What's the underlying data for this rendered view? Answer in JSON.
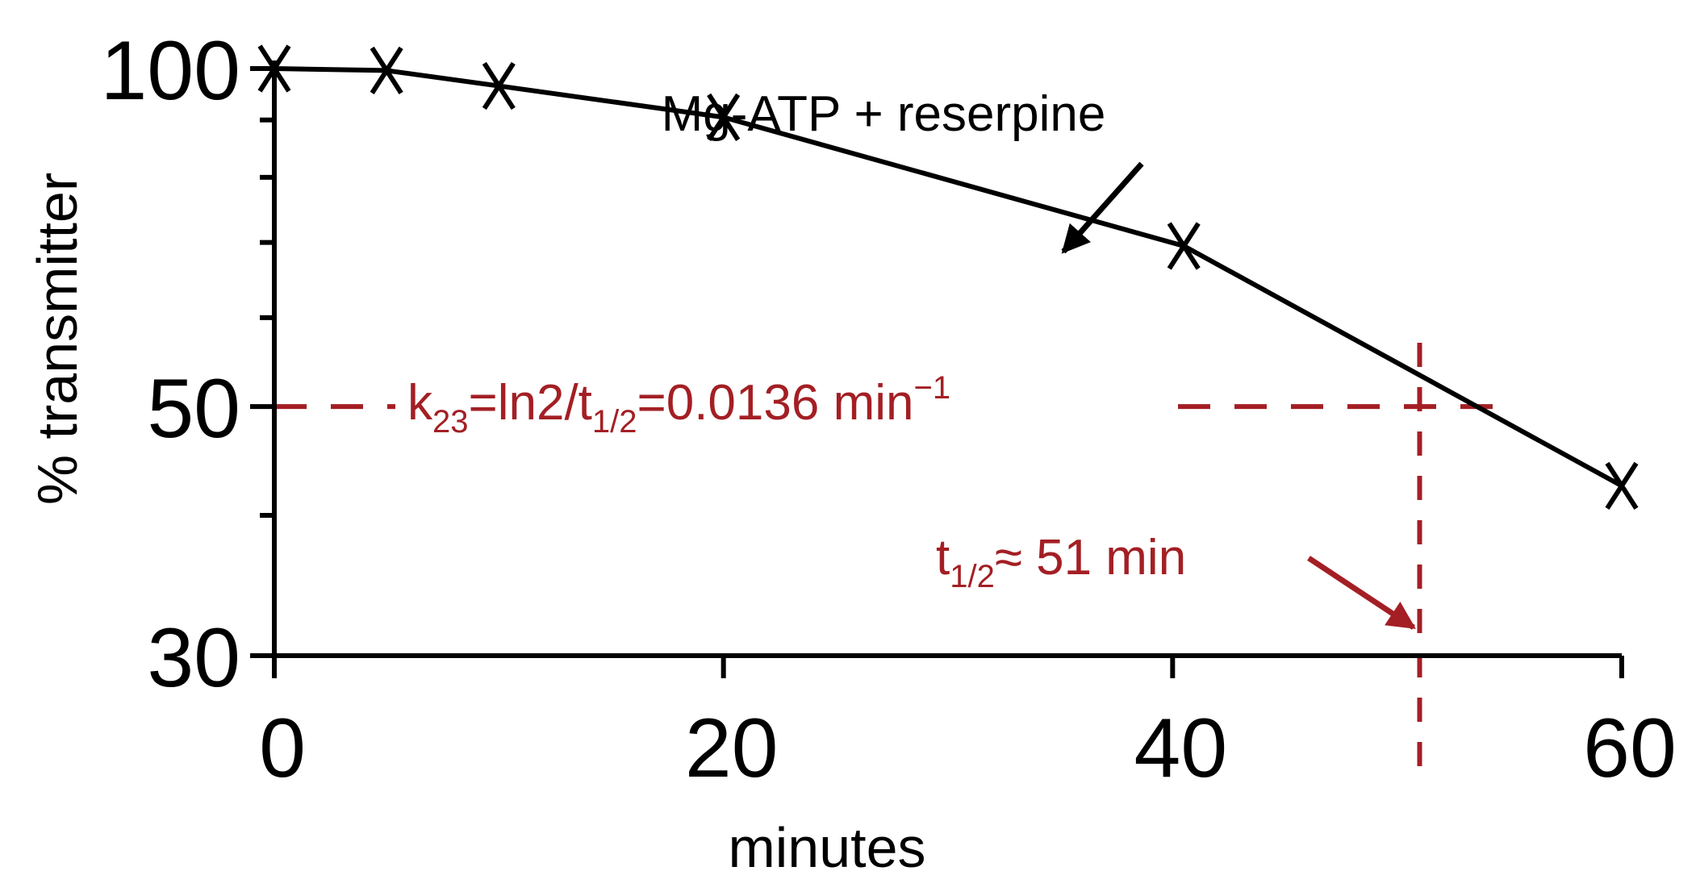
{
  "chart_data": {
    "type": "line",
    "title": "",
    "xlabel": "minutes",
    "ylabel": "% transmitter",
    "x_scale": "linear",
    "y_scale": "log",
    "xlim": [
      0,
      60
    ],
    "ylim": [
      30,
      100
    ],
    "x_ticks": [
      "0",
      "20",
      "40",
      "60"
    ],
    "x_tick_values": [
      0,
      20,
      40,
      60
    ],
    "y_ticks": [
      "30",
      "50",
      "100"
    ],
    "y_tick_values": [
      30,
      50,
      100
    ],
    "y_minor_tick_values": [
      40,
      60,
      70,
      80,
      90
    ],
    "grid": false,
    "series": [
      {
        "name": "Mg-ATP + reserpine",
        "marker": "x",
        "color": "#000000",
        "x": [
          0,
          5,
          10,
          20,
          40.5,
          60
        ],
        "y": [
          100,
          99.6,
          96.5,
          90.5,
          69.5,
          42.5
        ]
      }
    ],
    "reference_lines": {
      "color": "#a31f24",
      "horizontal_y": 50,
      "vertical_x": 51
    },
    "annotations": {
      "series_label": "Mg-ATP + reserpine",
      "rate": {
        "k": "k",
        "k_sub": "23",
        "mid": "=ln2/t",
        "half_sub": "1/2",
        "value": "=0.0136 min",
        "sup": "−1"
      },
      "halftime": {
        "t": "t",
        "t_sub": "1/2",
        "value": "≈ 51 min"
      }
    }
  }
}
